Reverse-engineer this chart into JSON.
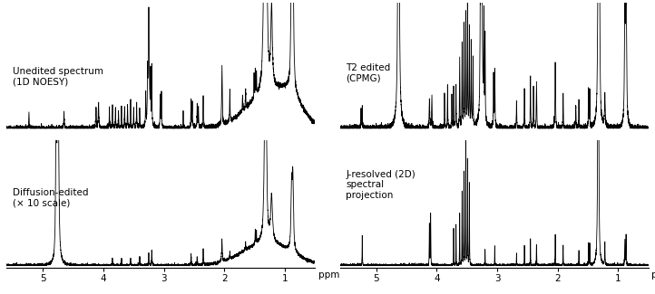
{
  "background_color": "#ffffff",
  "text_color": "#000000",
  "xlim": [
    5.6,
    0.5
  ],
  "labels": {
    "top_left": "Unedited spectrum\n(1D NOESY)",
    "bottom_left": "Diffusion-edited\n(× 10 scale)",
    "top_right": "T2 edited\n(CPMG)",
    "bottom_right": "J-resolved (2D)\nspectral\nprojection"
  },
  "xlabel": "ppm",
  "tick_positions": [
    5,
    4,
    3,
    2,
    1
  ],
  "tick_labels": [
    "5",
    "4",
    "3",
    "2",
    "1"
  ]
}
